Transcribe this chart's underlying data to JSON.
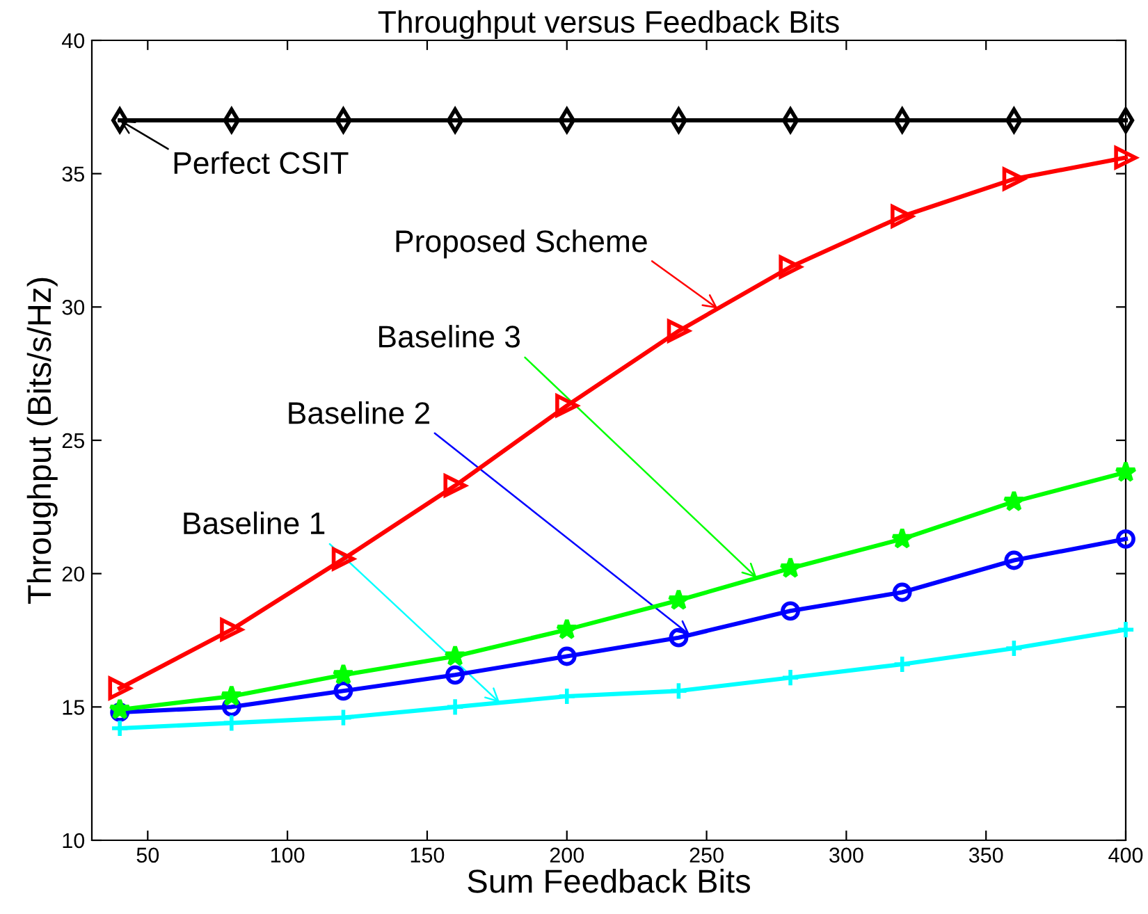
{
  "chart_data": {
    "type": "line",
    "title": "Throughput versus Feedback Bits",
    "xlabel": "Sum Feedback Bits",
    "ylabel": "Throughput (Bits/s/Hz)",
    "x": [
      40,
      80,
      120,
      160,
      200,
      240,
      280,
      320,
      360,
      400
    ],
    "series": [
      {
        "name": "Perfect CSIT",
        "color": "#000000",
        "marker": "diamond",
        "values": [
          37,
          37,
          37,
          37,
          37,
          37,
          37,
          37,
          37,
          37
        ]
      },
      {
        "name": "Proposed Scheme",
        "color": "#ff0000",
        "marker": "triangle",
        "values": [
          15.7,
          17.9,
          20.55,
          23.3,
          26.3,
          29.1,
          31.5,
          33.4,
          34.8,
          35.6
        ]
      },
      {
        "name": "Baseline 3",
        "color": "#00ff00",
        "marker": "star",
        "values": [
          14.9,
          15.4,
          16.2,
          16.9,
          17.9,
          19.0,
          20.2,
          21.3,
          22.7,
          23.8
        ]
      },
      {
        "name": "Baseline 2",
        "color": "#0000ff",
        "marker": "circle",
        "values": [
          14.8,
          15.0,
          15.6,
          16.2,
          16.9,
          17.6,
          18.6,
          19.3,
          20.5,
          21.3
        ]
      },
      {
        "name": "Baseline 1",
        "color": "#00ffff",
        "marker": "cross",
        "values": [
          14.2,
          14.4,
          14.6,
          15.0,
          15.4,
          15.6,
          16.1,
          16.6,
          17.2,
          17.9
        ]
      }
    ],
    "xlim": [
      30,
      400
    ],
    "xticks": [
      50,
      100,
      150,
      200,
      250,
      300,
      350,
      400
    ],
    "ylim": [
      10,
      40
    ],
    "yticks": [
      10,
      15,
      20,
      25,
      30,
      35,
      40
    ],
    "grid": false,
    "line_style": "solid"
  }
}
